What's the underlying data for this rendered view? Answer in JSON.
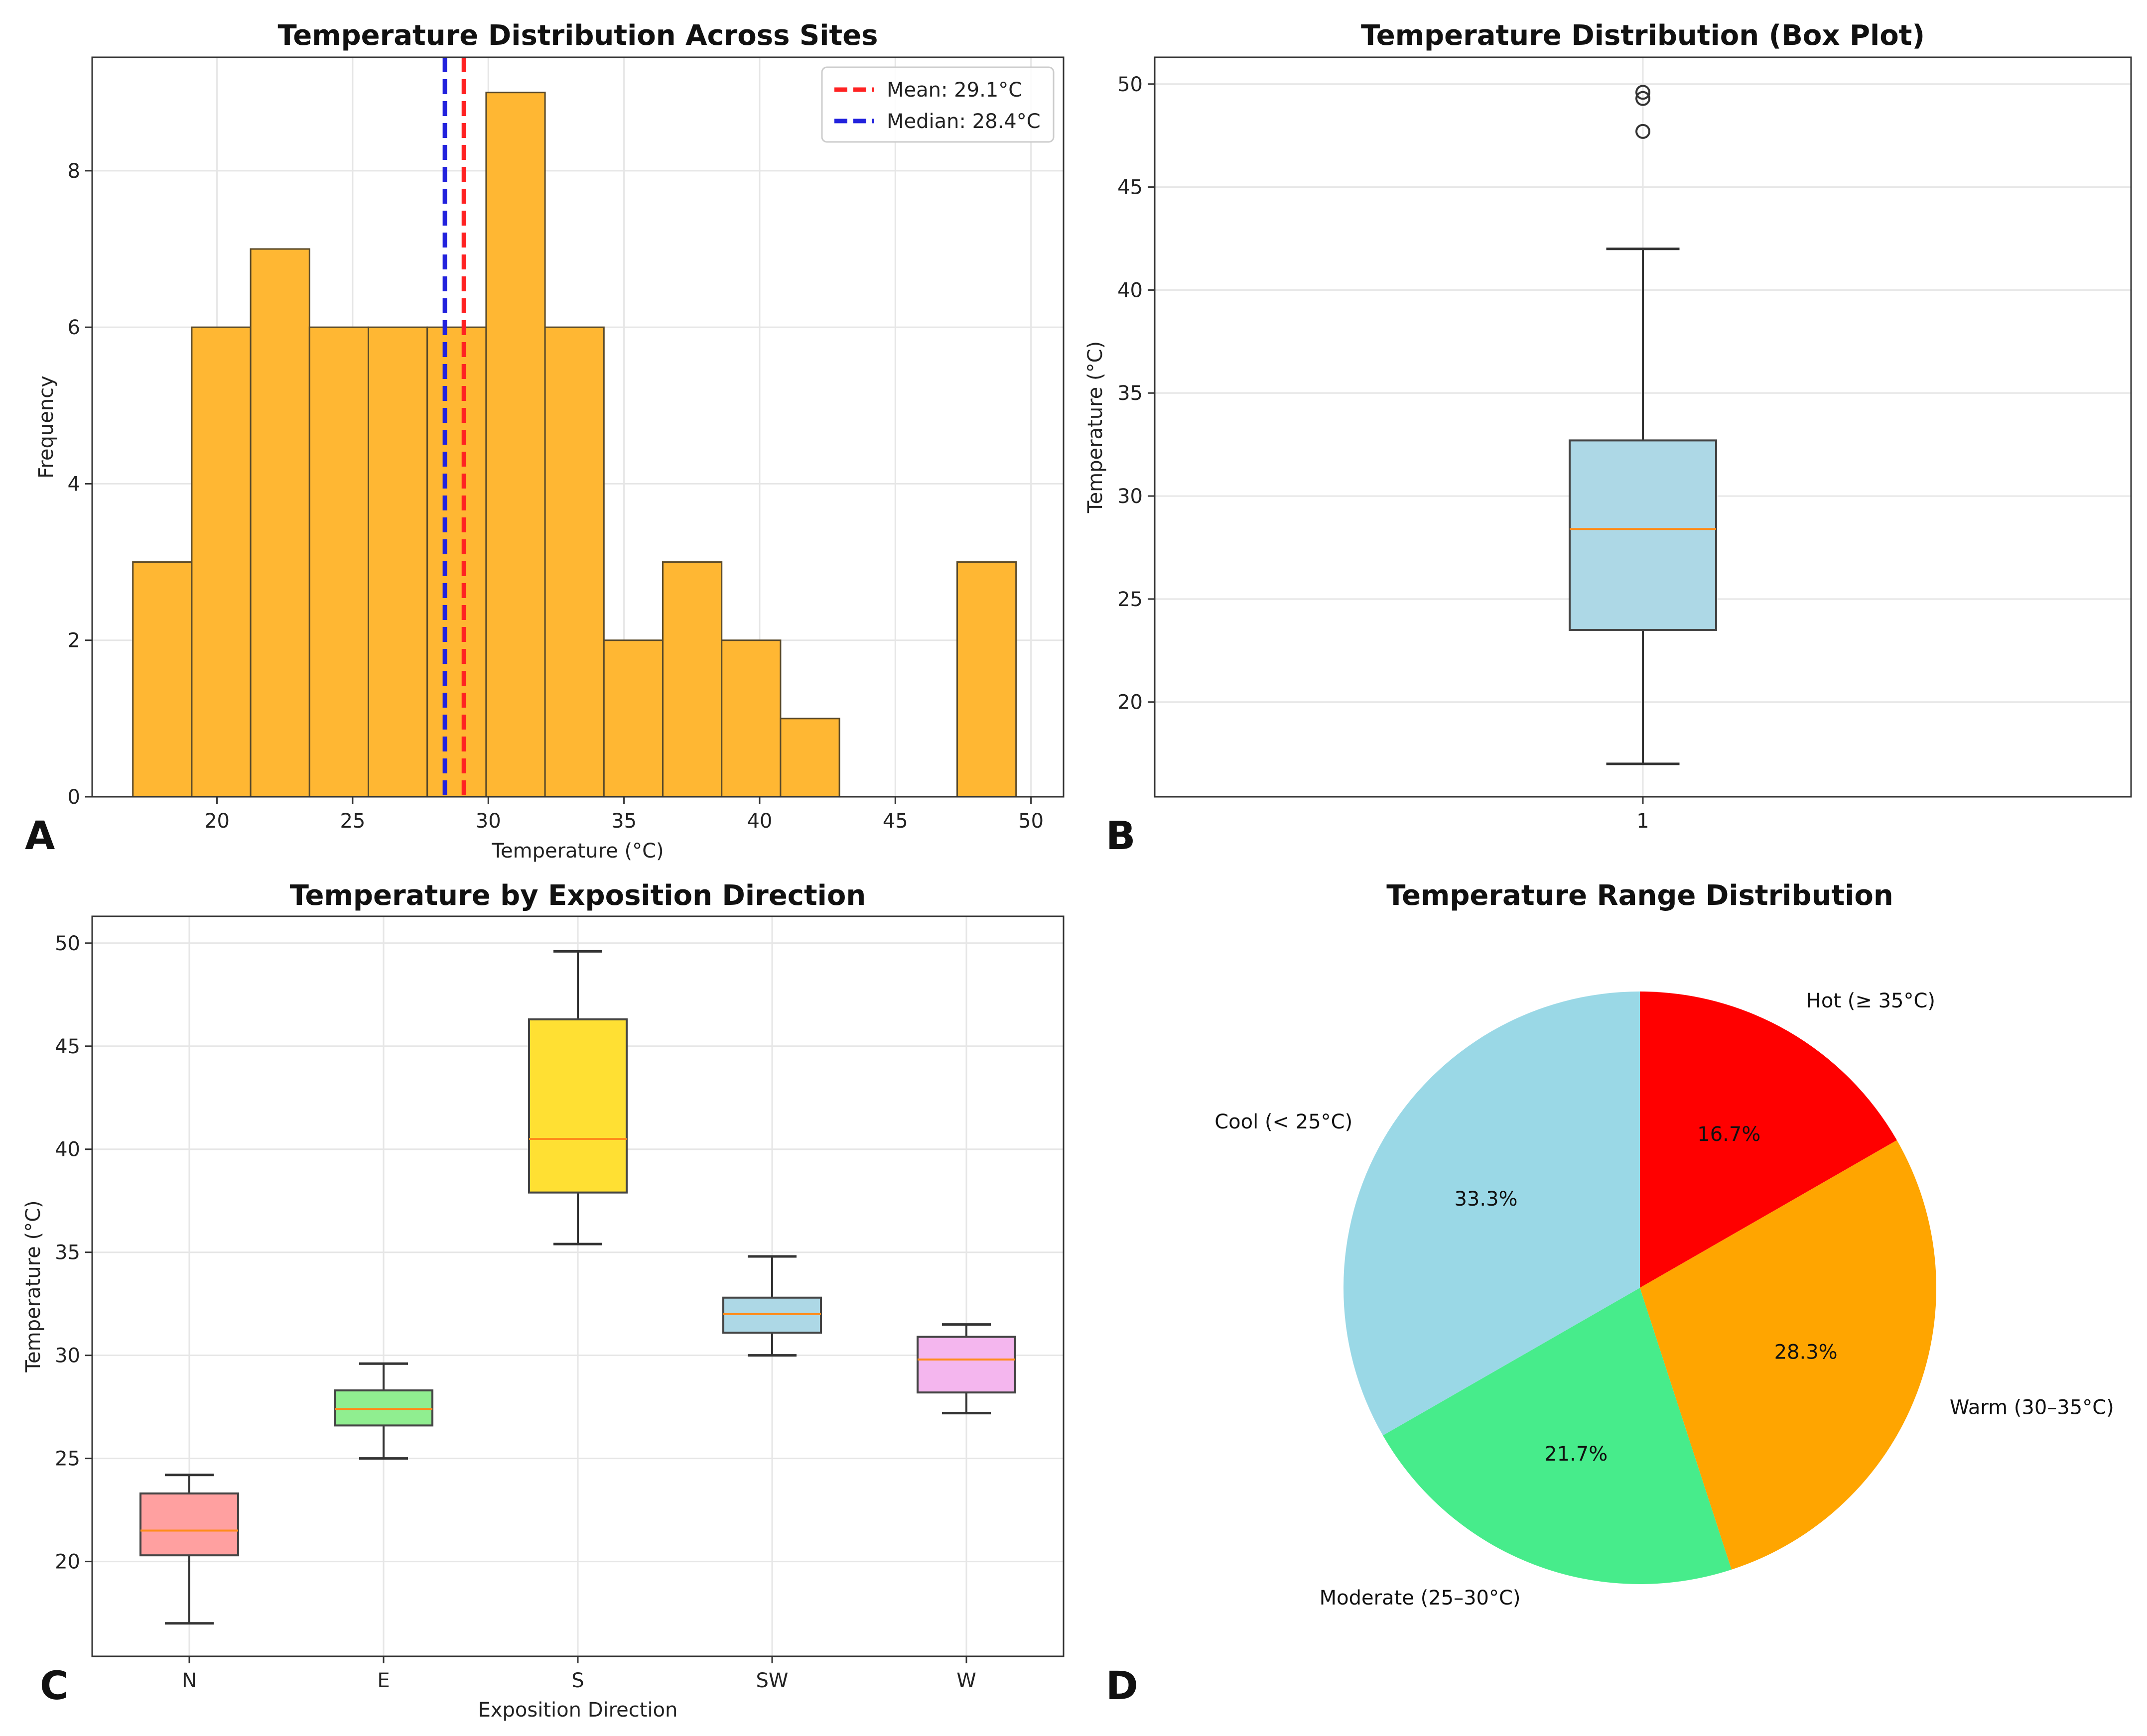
{
  "figure": {
    "panel_letters": [
      "A",
      "B",
      "C",
      "D"
    ]
  },
  "chart_data": [
    {
      "id": "hist",
      "type": "bar",
      "title": "Temperature Distribution Across Sites",
      "xlabel": "Temperature (°C)",
      "ylabel": "Frequency",
      "xlim": [
        15.4,
        51.2
      ],
      "ylim": [
        0,
        9.45
      ],
      "xticks": [
        20,
        25,
        30,
        35,
        40,
        45,
        50
      ],
      "yticks": [
        0,
        2,
        4,
        6,
        8
      ],
      "bins": [
        {
          "x0": 16.9,
          "x1": 19.07,
          "count": 3
        },
        {
          "x0": 19.07,
          "x1": 21.24,
          "count": 6
        },
        {
          "x0": 21.24,
          "x1": 23.41,
          "count": 7
        },
        {
          "x0": 23.41,
          "x1": 25.58,
          "count": 6
        },
        {
          "x0": 25.58,
          "x1": 27.75,
          "count": 6
        },
        {
          "x0": 27.75,
          "x1": 29.92,
          "count": 6
        },
        {
          "x0": 29.92,
          "x1": 32.09,
          "count": 9
        },
        {
          "x0": 32.09,
          "x1": 34.26,
          "count": 6
        },
        {
          "x0": 34.26,
          "x1": 36.43,
          "count": 2
        },
        {
          "x0": 36.43,
          "x1": 38.6,
          "count": 3
        },
        {
          "x0": 38.6,
          "x1": 40.77,
          "count": 2
        },
        {
          "x0": 40.77,
          "x1": 42.94,
          "count": 1
        },
        {
          "x0": 42.94,
          "x1": 45.11,
          "count": 0
        },
        {
          "x0": 45.11,
          "x1": 47.28,
          "count": 0
        },
        {
          "x0": 47.28,
          "x1": 49.45,
          "count": 3
        }
      ],
      "bar_color": "#ffb733",
      "vlines": [
        {
          "label": "Mean: 29.1°C",
          "x": 29.1,
          "color": "#ff2222"
        },
        {
          "label": "Median: 28.4°C",
          "x": 28.4,
          "color": "#2222dd"
        }
      ],
      "legend_position": "top-right",
      "grid": true
    },
    {
      "id": "box",
      "type": "box",
      "title": "Temperature Distribution (Box Plot)",
      "xlabel": "",
      "ylabel": "Temperature (°C)",
      "ylim": [
        15.4,
        51.3
      ],
      "yticks": [
        20,
        25,
        30,
        35,
        40,
        45,
        50
      ],
      "categories": [
        "1"
      ],
      "boxes": [
        {
          "name": "1",
          "whislo": 17.0,
          "q1": 23.5,
          "med": 28.4,
          "q3": 32.7,
          "whishi": 42.0,
          "fliers": [
            47.7,
            49.3,
            49.6
          ],
          "color": "#add8e6"
        }
      ],
      "grid": true
    },
    {
      "id": "dirbox",
      "type": "box",
      "title": "Temperature by Exposition Direction",
      "xlabel": "Exposition Direction",
      "ylabel": "Temperature (°C)",
      "ylim": [
        15.4,
        51.3
      ],
      "yticks": [
        20,
        25,
        30,
        35,
        40,
        45,
        50
      ],
      "categories": [
        "N",
        "E",
        "S",
        "SW",
        "W"
      ],
      "boxes": [
        {
          "name": "N",
          "whislo": 17.0,
          "q1": 20.3,
          "med": 21.5,
          "q3": 23.3,
          "whishi": 24.2,
          "fliers": [],
          "color": "#ffa0a0"
        },
        {
          "name": "E",
          "whislo": 25.0,
          "q1": 26.6,
          "med": 27.4,
          "q3": 28.3,
          "whishi": 29.6,
          "fliers": [],
          "color": "#90ee90"
        },
        {
          "name": "S",
          "whislo": 35.4,
          "q1": 37.9,
          "med": 40.5,
          "q3": 46.3,
          "whishi": 49.6,
          "fliers": [],
          "color": "#ffe033"
        },
        {
          "name": "SW",
          "whislo": 30.0,
          "q1": 31.1,
          "med": 32.0,
          "q3": 32.8,
          "whishi": 34.8,
          "fliers": [],
          "color": "#add8e6"
        },
        {
          "name": "W",
          "whislo": 27.2,
          "q1": 28.2,
          "med": 29.8,
          "q3": 30.9,
          "whishi": 31.5,
          "fliers": [],
          "color": "#f4b6ee"
        }
      ],
      "grid": true
    },
    {
      "id": "pie",
      "type": "pie",
      "title": "Temperature Range Distribution",
      "slices": [
        {
          "label": "Hot (≥ 35°C)",
          "value": 16.7,
          "pct": "16.7%",
          "color": "#ff0000"
        },
        {
          "label": "Warm (30–35°C)",
          "value": 28.3,
          "pct": "28.3%",
          "color": "#ffa500"
        },
        {
          "label": "Moderate (25–30°C)",
          "value": 21.7,
          "pct": "21.7%",
          "color": "#47ec8b"
        },
        {
          "label": "Cool (< 25°C)",
          "value": 33.3,
          "pct": "33.3%",
          "color": "#9ad8e6"
        }
      ],
      "start_angle": "top, clockwise"
    }
  ]
}
